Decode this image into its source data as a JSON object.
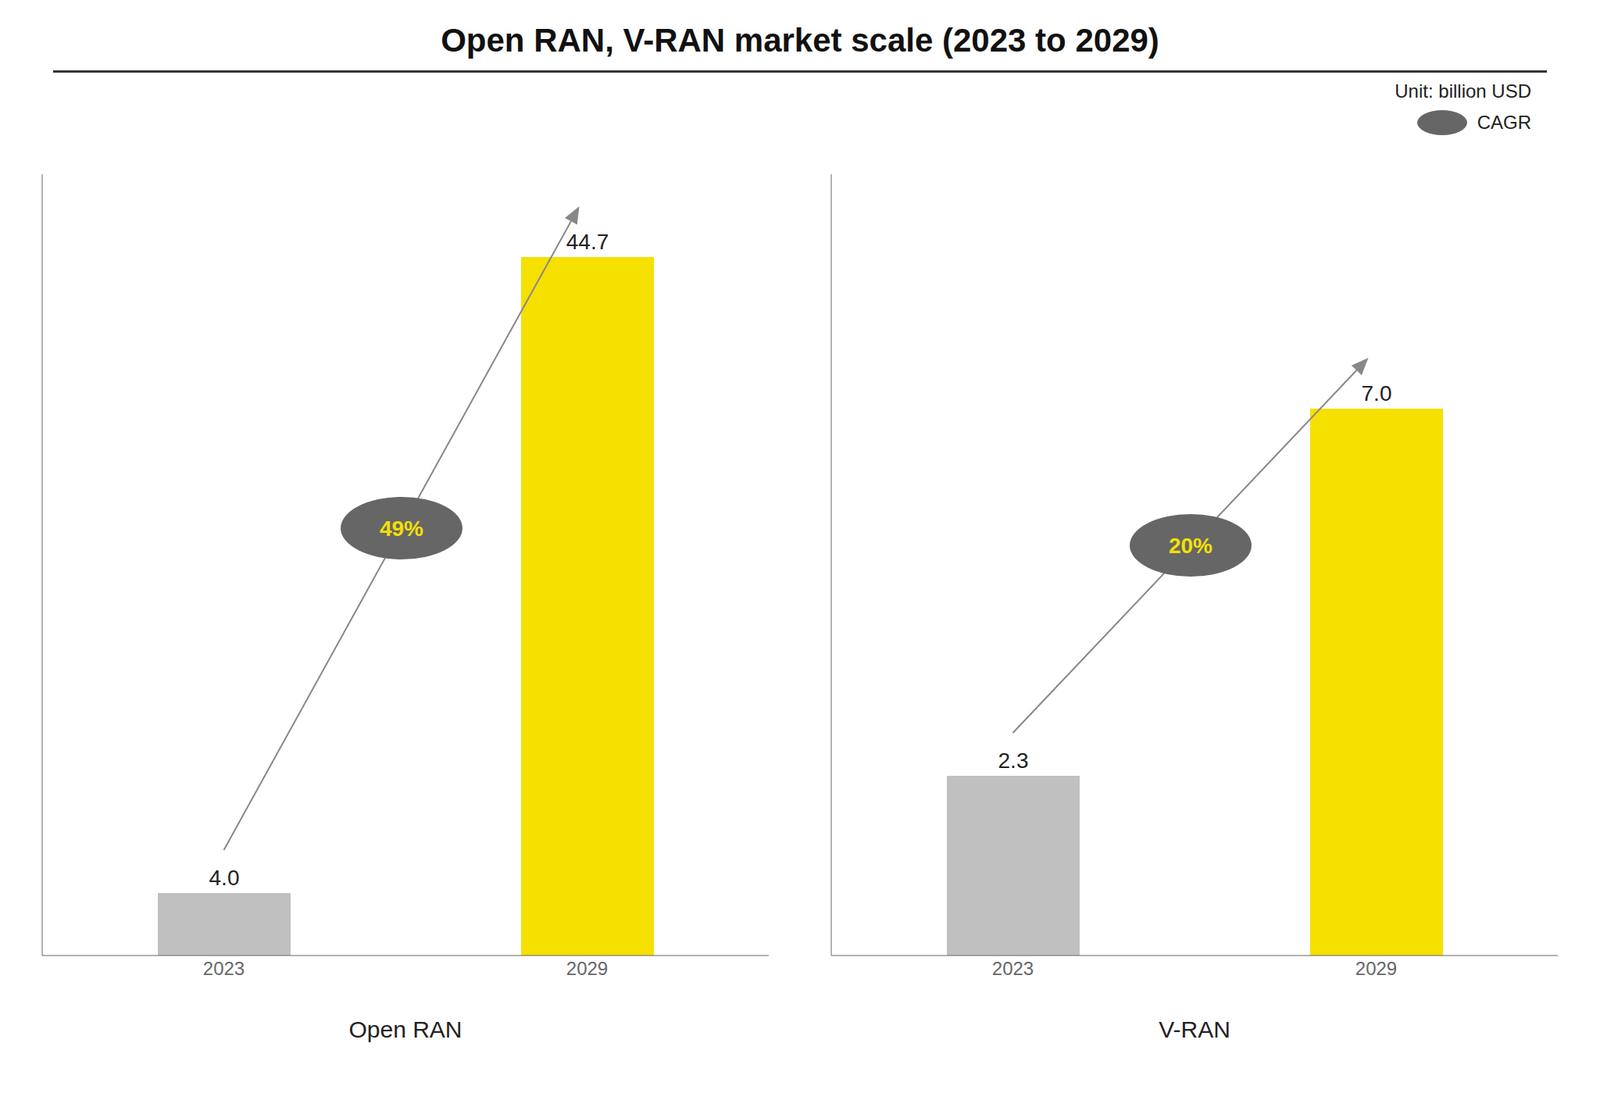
{
  "title": "Open RAN, V-RAN market scale (2023 to 2029)",
  "subtitle": "Unit: billion USD",
  "annotations": [
    "CAGR"
  ],
  "chart_data": [
    {
      "type": "bar",
      "xlabel": "Open RAN",
      "categories": [
        "2023",
        "2029"
      ],
      "values": [
        4.0,
        44.7
      ],
      "value_labels": [
        "4.0",
        "44.7"
      ],
      "colors": [
        "#c0c0c0",
        "#f5e000"
      ],
      "ylim": [
        0,
        50
      ],
      "data_labels": true,
      "tick_labels": "x",
      "annotations": [
        "49%"
      ]
    },
    {
      "type": "bar",
      "xlabel": "V-RAN",
      "categories": [
        "2023",
        "2029"
      ],
      "values": [
        2.3,
        7.0
      ],
      "value_labels": [
        "2.3",
        "7.0"
      ],
      "colors": [
        "#c0c0c0",
        "#f5e000"
      ],
      "ylim": [
        0,
        10
      ],
      "data_labels": true,
      "tick_labels": "x",
      "annotations": [
        "20%"
      ]
    }
  ]
}
